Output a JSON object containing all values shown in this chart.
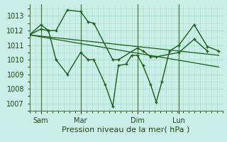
{
  "xlabel": "Pression niveau de la mer( hPa )",
  "bg_color": "#cceee8",
  "grid_color": "#aaddcc",
  "line_color": "#1a5c1a",
  "vline_color": "#4a7a4a",
  "ylim": [
    1006.5,
    1013.8
  ],
  "yticks": [
    1007,
    1008,
    1009,
    1010,
    1011,
    1012,
    1013
  ],
  "xtick_labels": [
    "Sam",
    "Mar",
    "Dim",
    "Lun"
  ],
  "xtick_positions": [
    0.06,
    0.27,
    0.57,
    0.79
  ],
  "vline_positions": [
    0.06,
    0.27,
    0.57,
    0.79
  ],
  "series1_x": [
    0.0,
    0.06,
    0.1,
    0.14,
    0.2,
    0.27,
    0.31,
    0.34,
    0.44,
    0.47,
    0.57,
    0.6,
    0.64,
    0.67,
    0.79,
    0.87,
    0.94
  ],
  "series1_y": [
    1011.7,
    1012.4,
    1012.0,
    1012.0,
    1013.4,
    1013.3,
    1012.6,
    1012.5,
    1010.0,
    1010.0,
    1010.8,
    1010.6,
    1010.2,
    1010.2,
    1010.5,
    1011.4,
    1010.6
  ],
  "series2_x": [
    0.0,
    0.06,
    0.1,
    0.14,
    0.2,
    0.27,
    0.31,
    0.34,
    0.4,
    0.44,
    0.47,
    0.51,
    0.54,
    0.57,
    0.6,
    0.64,
    0.67,
    0.7,
    0.74,
    0.79,
    0.87,
    0.94,
    1.0
  ],
  "series2_y": [
    1011.7,
    1012.1,
    1012.0,
    1010.0,
    1009.0,
    1010.5,
    1010.0,
    1010.0,
    1008.3,
    1006.8,
    1009.6,
    1009.7,
    1010.3,
    1010.3,
    1009.6,
    1008.3,
    1007.1,
    1008.5,
    1010.6,
    1011.0,
    1012.4,
    1010.9,
    1010.6
  ],
  "trend1_x": [
    0.0,
    1.0
  ],
  "trend1_y": [
    1011.7,
    1010.3
  ],
  "trend2_x": [
    0.0,
    1.0
  ],
  "trend2_y": [
    1011.7,
    1009.5
  ],
  "xlim": [
    0.0,
    1.02
  ],
  "xlabel_fontsize": 8,
  "tick_fontsize": 7
}
